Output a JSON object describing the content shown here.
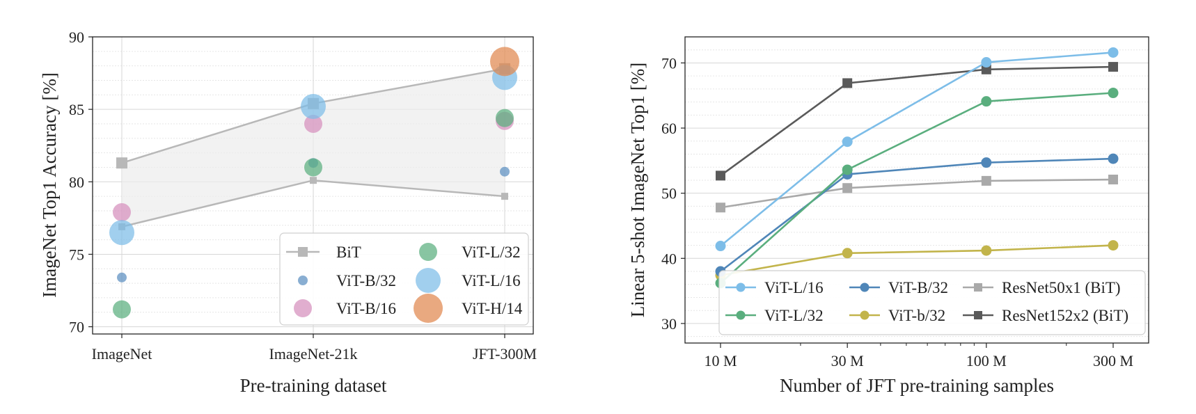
{
  "chart_data": [
    {
      "type": "scatter",
      "xlabel": "Pre-training dataset",
      "ylabel": "ImageNet Top1 Accuracy [%]",
      "categories": [
        "ImageNet",
        "ImageNet-21k",
        "JFT-300M"
      ],
      "ylim": [
        69.5,
        90
      ],
      "yticks": [
        "70",
        "75",
        "80",
        "85",
        "90"
      ],
      "grid": true,
      "legend_position": "bottom-right",
      "bit_band": {
        "name": "BiT",
        "color": "#b8b8b8",
        "upper": [
          81.3,
          85.4,
          87.8
        ],
        "lower": [
          76.9,
          80.1,
          79.0
        ]
      },
      "series": [
        {
          "name": "ViT-B/32",
          "color": "#5b8fc0",
          "size": "small",
          "values": [
            73.4,
            81.3,
            80.7
          ]
        },
        {
          "name": "ViT-B/16",
          "color": "#d58fbd",
          "size": "medium",
          "values": [
            77.9,
            84.0,
            84.2
          ]
        },
        {
          "name": "ViT-L/32",
          "color": "#5aae7e",
          "size": "medium",
          "values": [
            71.2,
            81.0,
            84.4
          ]
        },
        {
          "name": "ViT-L/16",
          "color": "#7dbde8",
          "size": "large",
          "values": [
            76.5,
            85.2,
            87.2
          ]
        },
        {
          "name": "ViT-H/14",
          "color": "#e0884f",
          "size": "xlarge",
          "values": [
            null,
            null,
            88.3
          ]
        }
      ]
    },
    {
      "type": "line",
      "xlabel": "Number of JFT pre-training samples",
      "ylabel": "Linear 5-shot ImageNet Top1 [%]",
      "x": [
        10,
        30,
        100,
        300
      ],
      "xticks": [
        "10 M",
        "30 M",
        "100 M",
        "300 M"
      ],
      "xscale": "log",
      "ylim": [
        27,
        74
      ],
      "yticks": [
        "30",
        "40",
        "50",
        "60",
        "70"
      ],
      "grid": true,
      "legend_position": "bottom-right",
      "series": [
        {
          "name": "ViT-L/16",
          "color": "#7dbde8",
          "marker": "circle",
          "values": [
            41.9,
            57.9,
            70.1,
            71.6
          ]
        },
        {
          "name": "ViT-L/32",
          "color": "#5aae7e",
          "marker": "circle",
          "values": [
            36.2,
            53.6,
            64.1,
            65.4
          ]
        },
        {
          "name": "ViT-B/32",
          "color": "#4f86b8",
          "marker": "circle",
          "values": [
            38.0,
            52.9,
            54.7,
            55.3
          ]
        },
        {
          "name": "ViT-b/32",
          "color": "#c2b44b",
          "marker": "circle",
          "values": [
            37.4,
            40.8,
            41.2,
            42.0
          ]
        },
        {
          "name": "ResNet50x1 (BiT)",
          "color": "#a9a9a9",
          "marker": "square",
          "values": [
            47.8,
            50.8,
            51.9,
            52.1
          ]
        },
        {
          "name": "ResNet152x2 (BiT)",
          "color": "#5a5a5a",
          "marker": "square",
          "values": [
            52.7,
            66.9,
            69.0,
            69.4
          ]
        }
      ]
    }
  ]
}
